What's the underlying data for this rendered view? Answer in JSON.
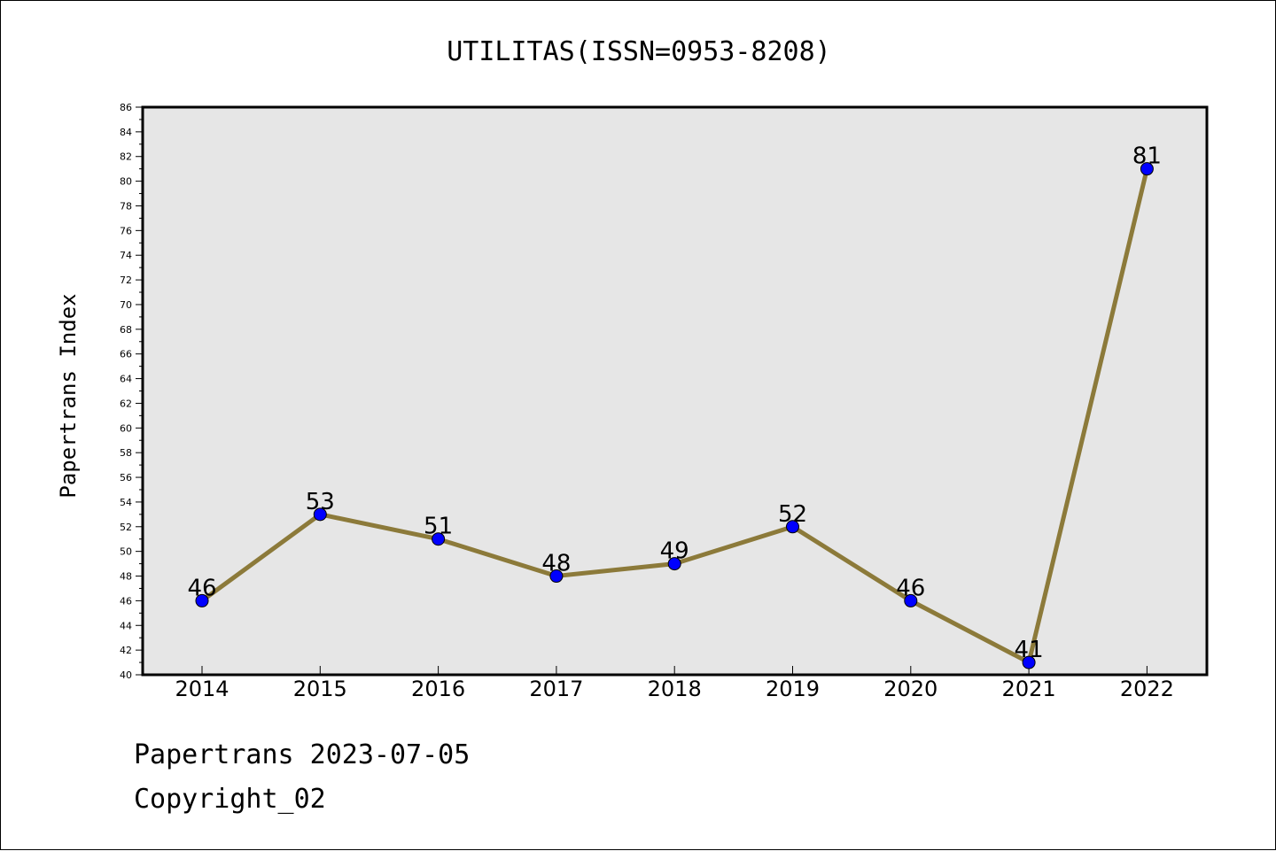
{
  "chart_data": {
    "type": "line",
    "title": "UTILITAS(ISSN=0953-8208)",
    "ylabel": "Papertrans Index",
    "xlabel": "",
    "categories": [
      "2014",
      "2015",
      "2016",
      "2017",
      "2018",
      "2019",
      "2020",
      "2021",
      "2022"
    ],
    "values": [
      46,
      53,
      51,
      48,
      49,
      52,
      46,
      41,
      81
    ],
    "ylim": [
      40,
      86
    ],
    "ytick_step": 2,
    "grid": false,
    "line_color": "#8c7a3a",
    "marker_color": "#0000ff",
    "plot_background": "#e6e6e6"
  },
  "footer": {
    "date_line": "Papertrans 2023-07-05",
    "copyright_line": "Copyright_02"
  }
}
